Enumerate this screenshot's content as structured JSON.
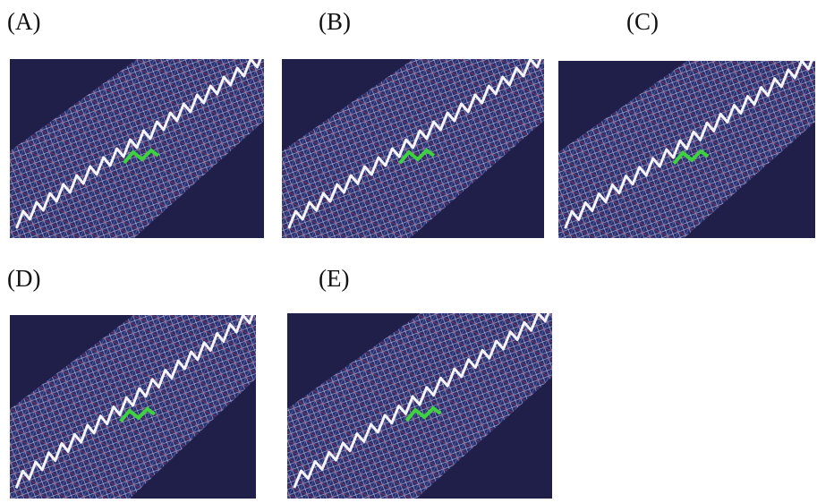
{
  "panels": [
    {
      "label": "(A)"
    },
    {
      "label": "(B)"
    },
    {
      "label": "(C)"
    },
    {
      "label": "(D)"
    },
    {
      "label": "(E)"
    }
  ]
}
